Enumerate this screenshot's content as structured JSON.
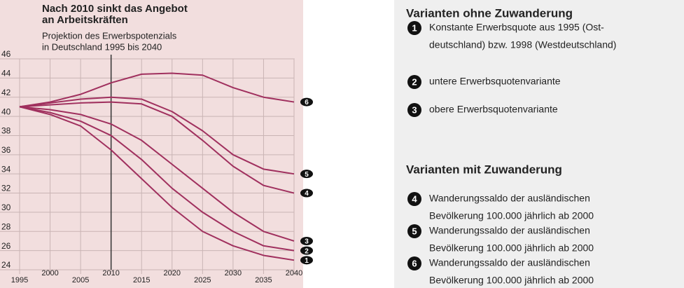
{
  "chart_data": {
    "type": "line",
    "title_lines": [
      "Nach 2010 sinkt das Angebot",
      "an Arbeitskräften"
    ],
    "subtitle_lines": [
      "Projektion des Erwerbspotenzials",
      "in Deutschland 1995 bis 2040"
    ],
    "x": [
      1995,
      2000,
      2005,
      2010,
      2015,
      2020,
      2025,
      2030,
      2035,
      2040
    ],
    "xlim": [
      1995,
      2040
    ],
    "xticks": [
      1995,
      2000,
      2005,
      2010,
      2015,
      2020,
      2025,
      2030,
      2035,
      2040
    ],
    "ylim": [
      24,
      46
    ],
    "yticks": [
      24,
      26,
      28,
      30,
      32,
      34,
      36,
      38,
      40,
      42,
      44,
      46
    ],
    "grid": true,
    "series": [
      {
        "name": "1",
        "color": "#a0305e",
        "values": [
          41,
          40.2,
          39,
          36.5,
          33.5,
          30.5,
          28,
          26.5,
          25.5,
          25
        ]
      },
      {
        "name": "2",
        "color": "#a0305e",
        "values": [
          41,
          40.4,
          39.5,
          38,
          35.5,
          32.5,
          30,
          28,
          26.5,
          26
        ]
      },
      {
        "name": "3",
        "color": "#a0305e",
        "values": [
          41,
          40.7,
          40.2,
          39.2,
          37.5,
          35,
          32.5,
          30,
          28,
          27
        ]
      },
      {
        "name": "4",
        "color": "#a0305e",
        "values": [
          41,
          41.2,
          41.4,
          41.5,
          41.3,
          40,
          37.5,
          34.8,
          32.8,
          32
        ]
      },
      {
        "name": "5",
        "color": "#a0305e",
        "values": [
          41,
          41.4,
          41.8,
          42,
          41.8,
          40.5,
          38.5,
          36,
          34.5,
          34
        ]
      },
      {
        "name": "6",
        "color": "#a0305e",
        "values": [
          41,
          41.5,
          42.3,
          43.5,
          44.4,
          44.5,
          44.3,
          43,
          42,
          41.5
        ]
      }
    ]
  },
  "legend": {
    "groups": [
      {
        "heading": "Varianten ohne Zuwanderung",
        "items": [
          {
            "number": "1",
            "lines": [
              "Konstante Erwerbsquote aus 1995 (Ost-",
              "deutschland) bzw. 1998 (Westdeutschland)"
            ]
          },
          {
            "number": "2",
            "lines": [
              "untere Erwerbsquotenvariante"
            ]
          },
          {
            "number": "3",
            "lines": [
              "obere Erwerbsquotenvariante"
            ]
          }
        ]
      },
      {
        "heading": "Varianten mit Zuwanderung",
        "items": [
          {
            "number": "4",
            "lines": [
              "Wanderungssaldo der ausländischen",
              "Bevölkerung 100.000 jährlich ab 2000"
            ]
          },
          {
            "number": "5",
            "lines": [
              "Wanderungssaldo der ausländischen",
              "Bevölkerung 100.000 jährlich ab 2000"
            ]
          },
          {
            "number": "6",
            "lines": [
              "Wanderungssaldo der ausländischen",
              "Bevölkerung 100.000 jährlich ab 2000"
            ]
          }
        ]
      }
    ]
  }
}
